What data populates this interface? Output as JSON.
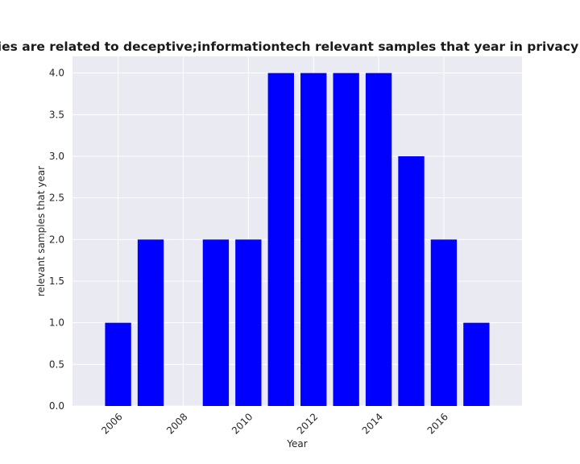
{
  "chart_data": {
    "type": "bar",
    "title": "ategories are related to deceptive;informationtech relevant samples that year in privacy policie",
    "xlabel": "Year",
    "ylabel": "relevant samples that year",
    "x": [
      2006,
      2007,
      2009,
      2010,
      2011,
      2012,
      2013,
      2014,
      2015,
      2016,
      2017
    ],
    "values": [
      1,
      2,
      2,
      2,
      4,
      4,
      4,
      4,
      3,
      2,
      1
    ],
    "xlim": [
      2004.6,
      2018.4
    ],
    "ylim": [
      0,
      4.2
    ],
    "x_ticks": [
      "2006",
      "2008",
      "2010",
      "2012",
      "2014",
      "2016"
    ],
    "y_ticks": [
      "0.0",
      "0.5",
      "1.0",
      "1.5",
      "2.0",
      "2.5",
      "3.0",
      "3.5",
      "4.0"
    ],
    "grid": true,
    "bar_color": "#0000ff",
    "background_color": "#eaeaf2",
    "grid_color": "#ffffff"
  }
}
